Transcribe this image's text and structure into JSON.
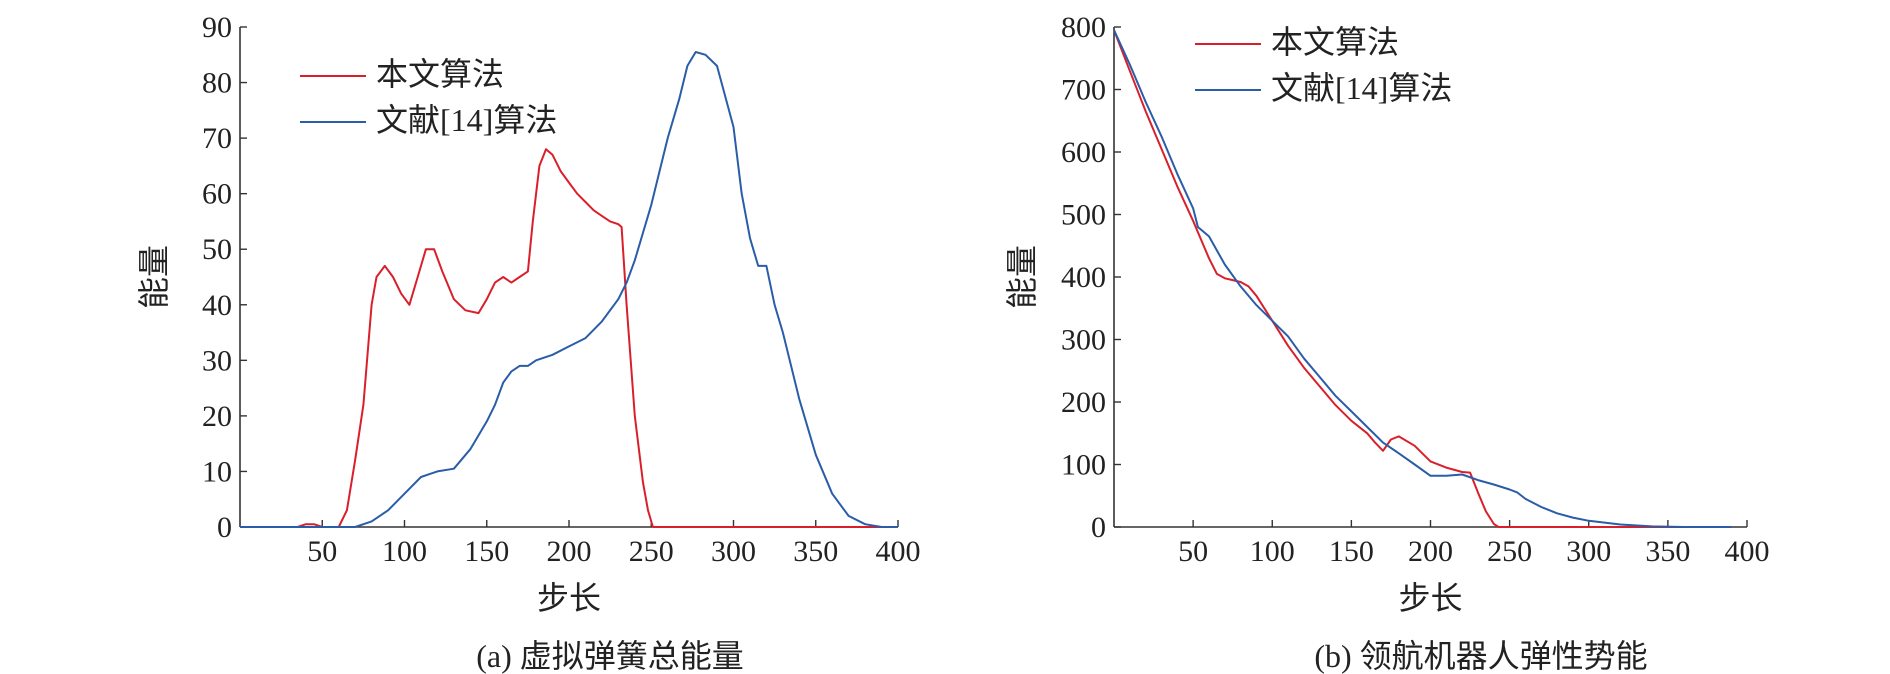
{
  "chart_data": [
    {
      "type": "line",
      "caption": "(a) 虚拟弹簧总能量",
      "xlabel": "步长",
      "ylabel": "能量",
      "xlim": [
        0,
        400
      ],
      "ylim": [
        0,
        90
      ],
      "xticks": [
        50,
        100,
        150,
        200,
        250,
        300,
        350,
        400
      ],
      "yticks": [
        0,
        10,
        20,
        30,
        40,
        50,
        60,
        70,
        80,
        90
      ],
      "grid": false,
      "legend_position": "top-left",
      "series": [
        {
          "name": "本文算法",
          "color": "#d9202a",
          "points": [
            [
              0,
              0
            ],
            [
              35,
              0
            ],
            [
              40,
              0.5
            ],
            [
              45,
              0.5
            ],
            [
              50,
              0
            ],
            [
              60,
              0
            ],
            [
              65,
              3
            ],
            [
              70,
              12
            ],
            [
              75,
              22
            ],
            [
              80,
              40
            ],
            [
              83,
              45
            ],
            [
              88,
              47
            ],
            [
              93,
              45
            ],
            [
              98,
              42
            ],
            [
              103,
              40
            ],
            [
              108,
              45
            ],
            [
              113,
              50
            ],
            [
              118,
              50
            ],
            [
              123,
              46
            ],
            [
              130,
              41
            ],
            [
              137,
              39
            ],
            [
              145,
              38.5
            ],
            [
              150,
              41
            ],
            [
              155,
              44
            ],
            [
              160,
              45
            ],
            [
              165,
              44
            ],
            [
              170,
              45
            ],
            [
              175,
              46
            ],
            [
              178,
              55
            ],
            [
              182,
              65
            ],
            [
              186,
              68
            ],
            [
              190,
              67
            ],
            [
              195,
              64
            ],
            [
              200,
              62
            ],
            [
              205,
              60
            ],
            [
              210,
              58.5
            ],
            [
              215,
              57
            ],
            [
              220,
              56
            ],
            [
              225,
              55
            ],
            [
              230,
              54.5
            ],
            [
              232,
              54
            ],
            [
              235,
              40
            ],
            [
              240,
              20
            ],
            [
              245,
              8
            ],
            [
              248,
              3
            ],
            [
              251,
              0
            ],
            [
              400,
              0
            ]
          ]
        },
        {
          "name": "文献[14]算法",
          "color": "#2a5da8",
          "points": [
            [
              0,
              0
            ],
            [
              60,
              0
            ],
            [
              70,
              0
            ],
            [
              75,
              0.5
            ],
            [
              80,
              1
            ],
            [
              90,
              3
            ],
            [
              100,
              6
            ],
            [
              110,
              9
            ],
            [
              115,
              9.5
            ],
            [
              120,
              10
            ],
            [
              130,
              10.5
            ],
            [
              140,
              14
            ],
            [
              150,
              19
            ],
            [
              155,
              22
            ],
            [
              160,
              26
            ],
            [
              165,
              28
            ],
            [
              170,
              29
            ],
            [
              175,
              29
            ],
            [
              180,
              30
            ],
            [
              190,
              31
            ],
            [
              200,
              32.5
            ],
            [
              210,
              34
            ],
            [
              220,
              37
            ],
            [
              230,
              41
            ],
            [
              235,
              44
            ],
            [
              240,
              48
            ],
            [
              250,
              58
            ],
            [
              260,
              70
            ],
            [
              267,
              77
            ],
            [
              272,
              83
            ],
            [
              277,
              85.5
            ],
            [
              283,
              85
            ],
            [
              290,
              83
            ],
            [
              300,
              72
            ],
            [
              305,
              60
            ],
            [
              310,
              52
            ],
            [
              315,
              47
            ],
            [
              320,
              47
            ],
            [
              325,
              40
            ],
            [
              330,
              35
            ],
            [
              340,
              23
            ],
            [
              350,
              13
            ],
            [
              360,
              6
            ],
            [
              370,
              2
            ],
            [
              380,
              0.5
            ],
            [
              390,
              0
            ],
            [
              400,
              0
            ]
          ]
        }
      ]
    },
    {
      "type": "line",
      "caption": "(b) 领航机器人弹性势能",
      "xlabel": "步长",
      "ylabel": "能量",
      "xlim": [
        0,
        400
      ],
      "ylim": [
        0,
        800
      ],
      "xticks": [
        50,
        100,
        150,
        200,
        250,
        300,
        350,
        400
      ],
      "yticks": [
        0,
        100,
        200,
        300,
        400,
        500,
        600,
        700,
        800
      ],
      "grid": false,
      "legend_position": "top-center",
      "series": [
        {
          "name": "本文算法",
          "color": "#d9202a",
          "points": [
            [
              0,
              795
            ],
            [
              10,
              730
            ],
            [
              20,
              665
            ],
            [
              30,
              605
            ],
            [
              40,
              545
            ],
            [
              50,
              490
            ],
            [
              55,
              460
            ],
            [
              60,
              430
            ],
            [
              65,
              405
            ],
            [
              70,
              398
            ],
            [
              75,
              395
            ],
            [
              80,
              392
            ],
            [
              85,
              385
            ],
            [
              90,
              370
            ],
            [
              100,
              330
            ],
            [
              110,
              290
            ],
            [
              120,
              255
            ],
            [
              130,
              225
            ],
            [
              140,
              195
            ],
            [
              150,
              170
            ],
            [
              160,
              150
            ],
            [
              165,
              135
            ],
            [
              170,
              122
            ],
            [
              175,
              140
            ],
            [
              180,
              145
            ],
            [
              190,
              130
            ],
            [
              200,
              105
            ],
            [
              210,
              95
            ],
            [
              220,
              88
            ],
            [
              225,
              87
            ],
            [
              230,
              55
            ],
            [
              235,
              25
            ],
            [
              240,
              5
            ],
            [
              243,
              0
            ],
            [
              390,
              0
            ]
          ]
        },
        {
          "name": "文献[14]算法",
          "color": "#2a5da8",
          "points": [
            [
              0,
              795
            ],
            [
              10,
              740
            ],
            [
              20,
              680
            ],
            [
              30,
              625
            ],
            [
              40,
              565
            ],
            [
              50,
              510
            ],
            [
              53,
              480
            ],
            [
              60,
              465
            ],
            [
              70,
              420
            ],
            [
              80,
              385
            ],
            [
              90,
              355
            ],
            [
              100,
              330
            ],
            [
              110,
              305
            ],
            [
              120,
              270
            ],
            [
              130,
              240
            ],
            [
              140,
              210
            ],
            [
              150,
              185
            ],
            [
              160,
              160
            ],
            [
              170,
              135
            ],
            [
              180,
              118
            ],
            [
              190,
              100
            ],
            [
              200,
              82
            ],
            [
              210,
              82
            ],
            [
              220,
              84
            ],
            [
              230,
              75
            ],
            [
              240,
              68
            ],
            [
              250,
              60
            ],
            [
              255,
              55
            ],
            [
              260,
              45
            ],
            [
              270,
              32
            ],
            [
              280,
              22
            ],
            [
              290,
              15
            ],
            [
              300,
              10
            ],
            [
              320,
              4
            ],
            [
              340,
              1
            ],
            [
              360,
              0
            ],
            [
              390,
              0
            ]
          ]
        }
      ]
    }
  ]
}
